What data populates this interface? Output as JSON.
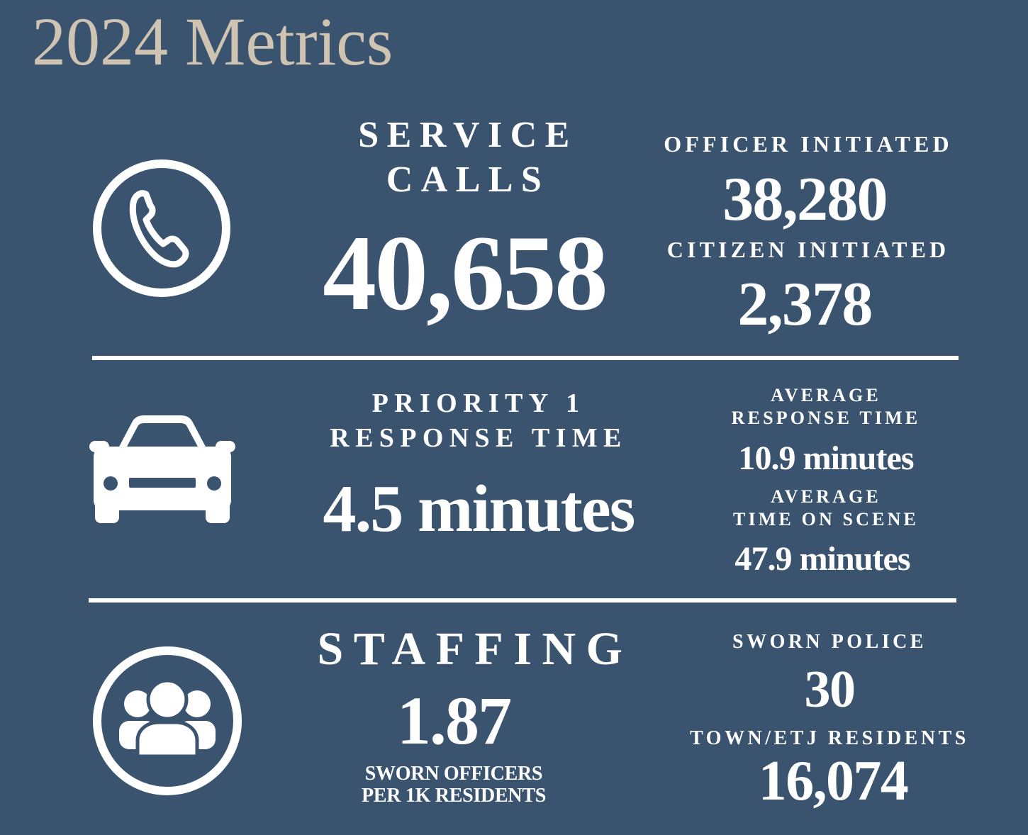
{
  "title": "2024 Metrics",
  "icons": {
    "calls": "phone-icon",
    "response": "car-icon",
    "staffing": "group-icon"
  },
  "colors": {
    "background": "#3a536f",
    "title": "#cfc3b1",
    "text": "#ffffff"
  },
  "calls": {
    "heading_line1": "SERVICE",
    "heading_line2": "CALLS",
    "total": "40,658",
    "officer_label": "OFFICER INITIATED",
    "officer_value": "38,280",
    "citizen_label": "CITIZEN INITIATED",
    "citizen_value": "2,378"
  },
  "response": {
    "heading_line1": "PRIORITY 1",
    "heading_line2": "RESPONSE TIME",
    "value": "4.5 minutes",
    "avg_response_line1": "AVERAGE",
    "avg_response_line2": "RESPONSE TIME",
    "avg_response_value": "10.9 minutes",
    "avg_scene_line1": "AVERAGE",
    "avg_scene_line2": "TIME ON SCENE",
    "avg_scene_value": "47.9 minutes"
  },
  "staffing": {
    "heading": "STAFFING",
    "value": "1.87",
    "caption_line1": "SWORN OFFICERS",
    "caption_line2": "PER 1K RESIDENTS",
    "sworn_label": "SWORN POLICE",
    "sworn_value": "30",
    "residents_label": "TOWN/ETJ RESIDENTS",
    "residents_value": "16,074"
  }
}
